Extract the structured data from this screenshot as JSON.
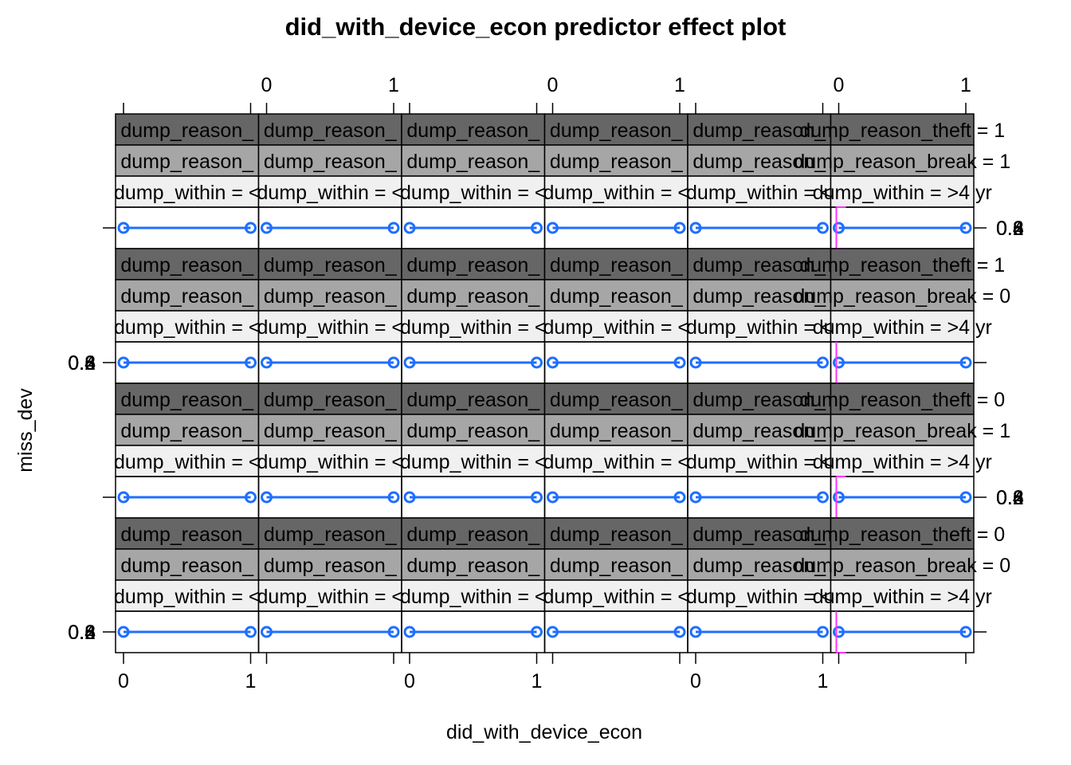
{
  "chart_data": {
    "type": "line",
    "title": "did_with_device_econ predictor effect plot",
    "xlabel": "did_with_device_econ",
    "ylabel": "miss_dev",
    "x": [
      0,
      1
    ],
    "x_ticks": [
      "0",
      "1"
    ],
    "y_tick_labels_overlapping": [
      "0.2",
      "0.4",
      "0.6",
      "0.8"
    ],
    "strip_rows": [
      {
        "theft": "dump_reason_theft = 1",
        "break": "dump_reason_break = 1"
      },
      {
        "theft": "dump_reason_theft = 1",
        "break": "dump_reason_break = 0"
      },
      {
        "theft": "dump_reason_theft = 0",
        "break": "dump_reason_break = 1"
      },
      {
        "theft": "dump_reason_theft = 0",
        "break": "dump_reason_break = 0"
      }
    ],
    "strip_columns": [
      "dump_within = <",
      "dump_within = <",
      "dump_within = <",
      "dump_within = <",
      "dump_within = <",
      "dump_within = >4 yr"
    ],
    "strip_overlap_fragment": "dump_reason_",
    "series": [
      {
        "values": [
          0.5,
          0.5
        ]
      }
    ],
    "colors": {
      "line": "#1f6fff",
      "error_bar": "#ff33ff",
      "strip_theft": "#666666",
      "strip_break": "#a6a6a6",
      "strip_within": "#f0f0f0"
    },
    "grid": false,
    "legend": "none"
  }
}
